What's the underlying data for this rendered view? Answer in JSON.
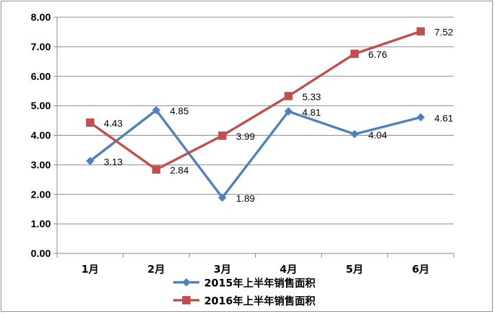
{
  "chart_data": {
    "type": "line",
    "categories": [
      "1月",
      "2月",
      "3月",
      "4月",
      "5月",
      "6月"
    ],
    "ylim": [
      0,
      8
    ],
    "yticks": [
      "0.00",
      "1.00",
      "2.00",
      "3.00",
      "4.00",
      "5.00",
      "6.00",
      "7.00",
      "8.00"
    ],
    "grid": true,
    "legend_position": "bottom",
    "series": [
      {
        "name": "2015年上半年销售面积",
        "values": [
          3.13,
          4.85,
          1.89,
          4.81,
          4.04,
          4.61
        ],
        "labels": [
          "3.13",
          "4.85",
          "1.89",
          "4.81",
          "4.04",
          "4.61"
        ],
        "color": "#4f81bd",
        "marker": "diamond"
      },
      {
        "name": "2016年上半年销售面积",
        "values": [
          4.43,
          2.84,
          3.99,
          5.33,
          6.76,
          7.52
        ],
        "labels": [
          "4.43",
          "2.84",
          "3.99",
          "5.33",
          "6.76",
          "7.52"
        ],
        "color": "#c0504d",
        "marker": "square"
      }
    ]
  }
}
